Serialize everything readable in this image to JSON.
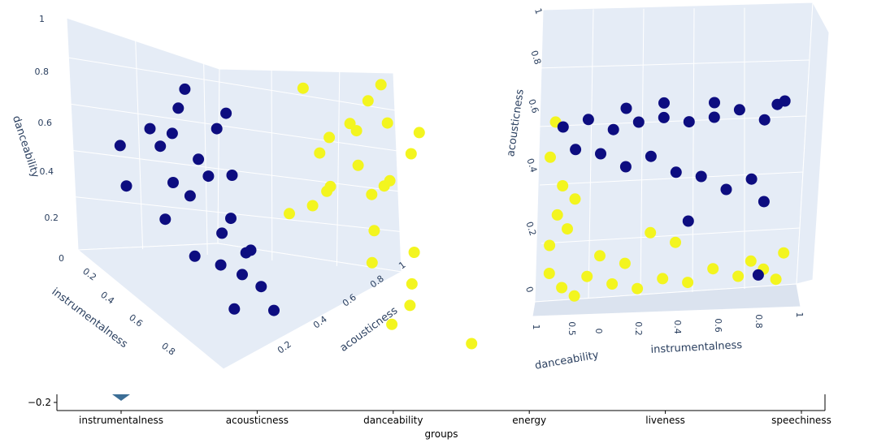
{
  "chart_data": [
    {
      "type": "scatter3d",
      "axes": {
        "x": {
          "label": "instrumentalness",
          "ticks": [
            "0",
            "0.2",
            "0.4",
            "0.6",
            "0.8"
          ]
        },
        "y": {
          "label": "acousticness",
          "ticks": [
            "0.2",
            "0.4",
            "0.6",
            "0.8",
            "1"
          ]
        },
        "z": {
          "label": "danceability",
          "ticks": [
            "0",
            "0.2",
            "0.4",
            "0.6",
            "0.8",
            "1"
          ]
        }
      },
      "xlim": [
        0,
        1
      ],
      "ylim": [
        0,
        1
      ],
      "zlim": [
        0,
        1
      ],
      "colors": {
        "cluster_a": "#f3f51f",
        "cluster_b": "#0d0d80"
      },
      "background": "#e5ecf6",
      "series": [
        {
          "color": "#f3f51f",
          "points": [
            [
              0.05,
              0.9,
              0.95
            ],
            [
              0.08,
              0.85,
              0.88
            ],
            [
              0.1,
              0.9,
              0.8
            ],
            [
              0.12,
              0.8,
              0.75
            ],
            [
              0.15,
              0.95,
              0.7
            ],
            [
              0.05,
              0.75,
              0.65
            ],
            [
              0.1,
              0.7,
              0.6
            ],
            [
              0.2,
              0.85,
              0.55
            ],
            [
              0.08,
              0.92,
              0.5
            ],
            [
              0.15,
              0.7,
              0.45
            ],
            [
              0.05,
              0.88,
              0.4
            ],
            [
              0.25,
              0.8,
              0.35
            ],
            [
              0.3,
              0.9,
              0.3
            ],
            [
              0.12,
              0.6,
              0.3
            ],
            [
              0.35,
              0.75,
              0.25
            ],
            [
              0.4,
              0.85,
              0.2
            ],
            [
              0.5,
              0.8,
              0.15
            ],
            [
              0.6,
              0.7,
              0.1
            ],
            [
              0.7,
              0.9,
              0.12
            ],
            [
              0.2,
              0.95,
              0.85
            ],
            [
              0.1,
              0.65,
              0.9
            ],
            [
              0.18,
              0.78,
              0.62
            ],
            [
              0.22,
              0.68,
              0.52
            ],
            [
              0.28,
              0.6,
              0.45
            ],
            [
              0.03,
              0.82,
              0.72
            ]
          ]
        },
        {
          "color": "#0d0d80",
          "points": [
            [
              0.1,
              0.3,
              0.8
            ],
            [
              0.2,
              0.35,
              0.7
            ],
            [
              0.3,
              0.25,
              0.6
            ],
            [
              0.15,
              0.2,
              0.55
            ],
            [
              0.25,
              0.3,
              0.5
            ],
            [
              0.35,
              0.2,
              0.45
            ],
            [
              0.4,
              0.3,
              0.4
            ],
            [
              0.2,
              0.15,
              0.65
            ],
            [
              0.3,
              0.35,
              0.55
            ],
            [
              0.45,
              0.25,
              0.35
            ],
            [
              0.5,
              0.3,
              0.3
            ],
            [
              0.1,
              0.1,
              0.5
            ],
            [
              0.55,
              0.2,
              0.25
            ],
            [
              0.6,
              0.3,
              0.2
            ],
            [
              0.65,
              0.25,
              0.4
            ],
            [
              0.7,
              0.2,
              0.3
            ],
            [
              0.15,
              0.4,
              0.75
            ],
            [
              0.05,
              0.3,
              0.68
            ],
            [
              0.35,
              0.15,
              0.5
            ],
            [
              0.75,
              0.15,
              0.15
            ],
            [
              0.8,
              0.25,
              0.2
            ],
            [
              0.25,
              0.05,
              0.4
            ],
            [
              0.4,
              0.1,
              0.35
            ],
            [
              0.12,
              0.25,
              0.6
            ],
            [
              0.6,
              0.1,
              0.3
            ]
          ]
        }
      ]
    },
    {
      "type": "scatter3d",
      "axes": {
        "x": {
          "label": "instrumentalness",
          "ticks": [
            "0",
            "0.2",
            "0.4",
            "0.6",
            "0.8",
            "1"
          ]
        },
        "y": {
          "label": "danceability",
          "ticks": [
            "0",
            "0.5",
            "1"
          ]
        },
        "z": {
          "label": "acousticness",
          "ticks": [
            "0",
            "0.2",
            "0.4",
            "0.6",
            "0.8",
            "1"
          ]
        }
      },
      "xlim": [
        0,
        1
      ],
      "ylim": [
        0,
        1
      ],
      "zlim": [
        0,
        1
      ],
      "series": [
        {
          "color": "#f3f51f",
          "points": [
            [
              0.05,
              0.4,
              0.1
            ],
            [
              0.1,
              0.5,
              0.05
            ],
            [
              0.15,
              0.6,
              0.02
            ],
            [
              0.2,
              0.3,
              0.08
            ],
            [
              0.05,
              0.7,
              0.2
            ],
            [
              0.08,
              0.5,
              0.3
            ],
            [
              0.1,
              0.6,
              0.4
            ],
            [
              0.3,
              0.4,
              0.05
            ],
            [
              0.4,
              0.5,
              0.03
            ],
            [
              0.5,
              0.6,
              0.06
            ],
            [
              0.6,
              0.5,
              0.04
            ],
            [
              0.7,
              0.4,
              0.08
            ],
            [
              0.8,
              0.5,
              0.05
            ],
            [
              0.9,
              0.6,
              0.07
            ],
            [
              0.95,
              0.4,
              0.03
            ],
            [
              0.05,
              0.55,
              0.5
            ],
            [
              0.07,
              0.6,
              0.62
            ],
            [
              0.12,
              0.5,
              0.25
            ],
            [
              0.25,
              0.45,
              0.15
            ],
            [
              0.35,
              0.55,
              0.12
            ],
            [
              0.15,
              0.45,
              0.35
            ],
            [
              0.85,
              0.55,
              0.1
            ],
            [
              0.98,
              0.5,
              0.12
            ],
            [
              0.45,
              0.6,
              0.22
            ],
            [
              0.55,
              0.5,
              0.18
            ]
          ]
        },
        {
          "color": "#0d0d80",
          "points": [
            [
              0.1,
              0.5,
              0.6
            ],
            [
              0.2,
              0.5,
              0.62
            ],
            [
              0.3,
              0.5,
              0.58
            ],
            [
              0.4,
              0.5,
              0.6
            ],
            [
              0.5,
              0.5,
              0.61
            ],
            [
              0.6,
              0.5,
              0.59
            ],
            [
              0.7,
              0.5,
              0.6
            ],
            [
              0.8,
              0.5,
              0.62
            ],
            [
              0.9,
              0.5,
              0.58
            ],
            [
              0.95,
              0.5,
              0.63
            ],
            [
              0.15,
              0.5,
              0.52
            ],
            [
              0.25,
              0.5,
              0.5
            ],
            [
              0.35,
              0.5,
              0.45
            ],
            [
              0.45,
              0.5,
              0.48
            ],
            [
              0.55,
              0.5,
              0.42
            ],
            [
              0.65,
              0.5,
              0.4
            ],
            [
              0.75,
              0.5,
              0.35
            ],
            [
              0.85,
              0.5,
              0.38
            ],
            [
              0.9,
              0.5,
              0.3
            ],
            [
              0.6,
              0.5,
              0.25
            ],
            [
              0.88,
              0.5,
              0.05
            ],
            [
              0.35,
              0.5,
              0.65
            ],
            [
              0.5,
              0.5,
              0.66
            ],
            [
              0.7,
              0.5,
              0.65
            ],
            [
              0.98,
              0.5,
              0.64
            ]
          ]
        }
      ]
    },
    {
      "type": "bar",
      "categories": [
        "instrumentalness",
        "acousticness",
        "danceability",
        "energy",
        "liveness",
        "speechiness"
      ],
      "xlabel": "groups",
      "ytick": "−0.2",
      "marker_color": "#3c6e96",
      "marker_at": "instrumentalness"
    }
  ]
}
